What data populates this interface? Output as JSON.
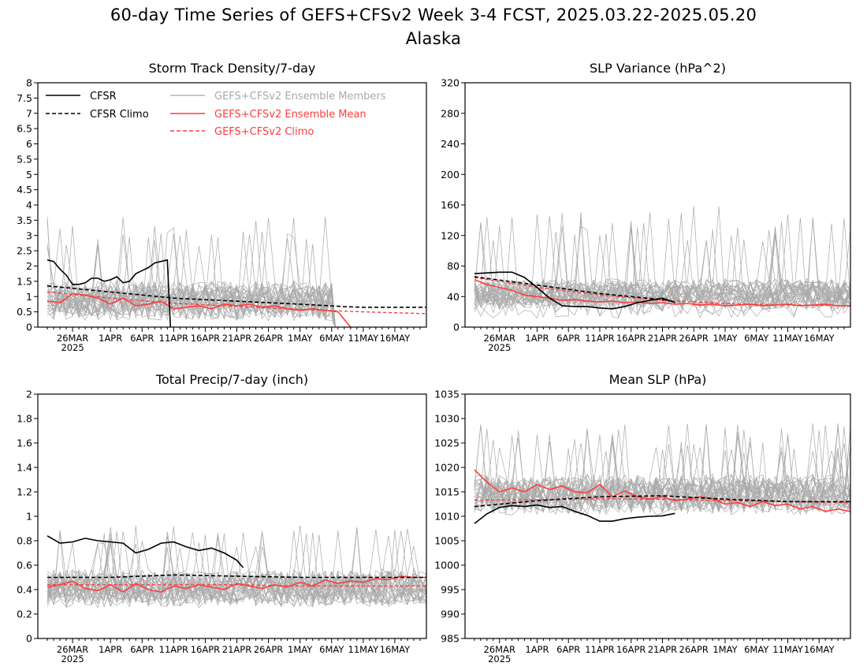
{
  "title_line1": "60-day Time Series of GEFS+CFSv2 Week 3-4 FCST, 2025.03.22-2025.05.20",
  "title_line2": "Alaska",
  "x_ticks": [
    {
      "day": 4,
      "label": "26MAR"
    },
    {
      "day": 10,
      "label": "1APR"
    },
    {
      "day": 15,
      "label": "6APR"
    },
    {
      "day": 20,
      "label": "11APR"
    },
    {
      "day": 25,
      "label": "16APR"
    },
    {
      "day": 30,
      "label": "21APR"
    },
    {
      "day": 35,
      "label": "26APR"
    },
    {
      "day": 40,
      "label": "1MAY"
    },
    {
      "day": 45,
      "label": "6MAY"
    },
    {
      "day": 50,
      "label": "11MAY"
    },
    {
      "day": 55,
      "label": "16MAY"
    }
  ],
  "x_year_label": "2025",
  "legend": {
    "cfsr": "CFSR",
    "cfsr_climo": "CFSR Climo",
    "members": "GEFS+CFSv2 Ensemble Members",
    "ens_mean": "GEFS+CFSv2 Ensemble Mean",
    "gefs_climo": "GEFS+CFSv2 Climo"
  },
  "colors": {
    "cfsr": "#000000",
    "members": "#a9a9a9",
    "ens_mean": "#ff3c3c",
    "gefs_climo": "#ff3c3c"
  },
  "chart_data": [
    {
      "type": "line",
      "title": "Storm Track Density/7-day",
      "ylim": [
        0,
        8
      ],
      "yticks": [
        0,
        0.5,
        1,
        1.5,
        2,
        2.5,
        3,
        3.5,
        4,
        4.5,
        5,
        5.5,
        6,
        6.5,
        7,
        7.5,
        8
      ],
      "members_summary": {
        "count": 30,
        "center": 0.9,
        "spread": 0.7,
        "max_peak": 3.7,
        "last_day": 45
      },
      "series": [
        {
          "key": "cfsr",
          "x": [
            0,
            1,
            2,
            3,
            4,
            5,
            6,
            7,
            8,
            9,
            10,
            11,
            12,
            13,
            14,
            15,
            16,
            17,
            18,
            19,
            19.5
          ],
          "values": [
            2.2,
            2.15,
            1.9,
            1.7,
            1.4,
            1.4,
            1.45,
            1.6,
            1.6,
            1.5,
            1.55,
            1.65,
            1.45,
            1.5,
            1.75,
            1.85,
            1.95,
            2.1,
            2.15,
            2.2,
            0
          ]
        },
        {
          "key": "cfsr_climo",
          "x": [
            0,
            10,
            20,
            30,
            40,
            47,
            50,
            60
          ],
          "values": [
            1.35,
            1.15,
            0.95,
            0.85,
            0.75,
            0.67,
            0.65,
            0.65
          ]
        },
        {
          "key": "ens_mean",
          "x": [
            0,
            2,
            4,
            6,
            8,
            10,
            12,
            14,
            16,
            18,
            20,
            22,
            24,
            26,
            28,
            30,
            32,
            34,
            36,
            38,
            40,
            42,
            44,
            46,
            48
          ],
          "values": [
            0.85,
            0.8,
            1.1,
            1.05,
            0.95,
            0.75,
            0.95,
            0.7,
            0.75,
            0.85,
            0.6,
            0.65,
            0.7,
            0.6,
            0.75,
            0.7,
            0.75,
            0.65,
            0.7,
            0.6,
            0.55,
            0.6,
            0.55,
            0.5,
            0
          ]
        },
        {
          "key": "gefs_climo",
          "x": [
            0,
            10,
            20,
            30,
            40,
            50,
            60
          ],
          "values": [
            1.15,
            0.95,
            0.78,
            0.68,
            0.58,
            0.5,
            0.44
          ]
        }
      ]
    },
    {
      "type": "line",
      "title": "SLP Variance (hPa^2)",
      "ylim": [
        0,
        320
      ],
      "yticks": [
        0,
        40,
        80,
        120,
        160,
        200,
        240,
        280,
        320
      ],
      "members_summary": {
        "count": 30,
        "center": 38,
        "spread": 22,
        "max_peak": 160,
        "last_day": 60
      },
      "series": [
        {
          "key": "cfsr",
          "x": [
            0,
            2,
            4,
            6,
            8,
            10,
            12,
            14,
            16,
            18,
            20,
            22,
            24,
            26,
            28,
            30,
            32
          ],
          "values": [
            70,
            71,
            72,
            72,
            65,
            52,
            38,
            28,
            27,
            27,
            25,
            24,
            27,
            32,
            35,
            38,
            32
          ]
        },
        {
          "key": "cfsr_climo",
          "x": [
            0,
            10,
            20,
            30,
            32
          ],
          "values": [
            66,
            55,
            44,
            36,
            33
          ]
        },
        {
          "key": "ens_mean",
          "x": [
            0,
            2,
            4,
            6,
            8,
            10,
            12,
            14,
            16,
            18,
            20,
            22,
            24,
            26,
            28,
            30,
            32,
            34,
            36,
            38,
            40,
            42,
            44,
            46,
            48,
            50,
            52,
            54,
            56,
            58,
            60
          ],
          "values": [
            62,
            56,
            52,
            48,
            42,
            40,
            38,
            35,
            36,
            34,
            33,
            34,
            32,
            33,
            31,
            32,
            30,
            31,
            29,
            30,
            28,
            29,
            30,
            28,
            29,
            30,
            28,
            29,
            30,
            28,
            28
          ]
        },
        {
          "key": "gefs_climo",
          "x": [
            0,
            10,
            20,
            30,
            40,
            50,
            60
          ],
          "values": [
            65,
            52,
            42,
            35,
            31,
            29,
            28
          ]
        }
      ]
    },
    {
      "type": "line",
      "title": "Total Precip/7-day (inch)",
      "ylim": [
        0,
        2
      ],
      "yticks": [
        0,
        0.2,
        0.4,
        0.6,
        0.8,
        1,
        1.2,
        1.4,
        1.6,
        1.8,
        2
      ],
      "members_summary": {
        "count": 30,
        "center": 0.45,
        "spread": 0.17,
        "max_peak": 0.93,
        "last_day": 60
      },
      "series": [
        {
          "key": "cfsr",
          "x": [
            0,
            2,
            4,
            6,
            8,
            10,
            12,
            14,
            16,
            18,
            20,
            22,
            24,
            26,
            28,
            30,
            31
          ],
          "values": [
            0.84,
            0.78,
            0.79,
            0.82,
            0.8,
            0.79,
            0.78,
            0.7,
            0.73,
            0.78,
            0.79,
            0.75,
            0.72,
            0.74,
            0.7,
            0.64,
            0.58
          ]
        },
        {
          "key": "cfsr_climo",
          "x": [
            0,
            10,
            20,
            30,
            40,
            50,
            60
          ],
          "values": [
            0.5,
            0.5,
            0.52,
            0.51,
            0.5,
            0.5,
            0.5
          ]
        },
        {
          "key": "ens_mean",
          "x": [
            0,
            2,
            4,
            6,
            8,
            10,
            12,
            14,
            16,
            18,
            20,
            22,
            24,
            26,
            28,
            30,
            32,
            34,
            36,
            38,
            40,
            42,
            44,
            46,
            48,
            50,
            52,
            54,
            56,
            58,
            60
          ],
          "values": [
            0.42,
            0.44,
            0.47,
            0.41,
            0.39,
            0.44,
            0.38,
            0.45,
            0.4,
            0.38,
            0.43,
            0.41,
            0.44,
            0.42,
            0.4,
            0.45,
            0.43,
            0.41,
            0.44,
            0.42,
            0.46,
            0.43,
            0.48,
            0.45,
            0.47,
            0.46,
            0.49,
            0.48,
            0.51,
            0.5,
            0.5
          ]
        },
        {
          "key": "gefs_climo",
          "x": [
            0,
            10,
            20,
            30,
            40,
            50,
            60
          ],
          "values": [
            0.44,
            0.44,
            0.44,
            0.44,
            0.43,
            0.43,
            0.43
          ]
        }
      ]
    },
    {
      "type": "line",
      "title": "Mean SLP (hPa)",
      "ylim": [
        985,
        1035
      ],
      "yticks": [
        985,
        990,
        995,
        1000,
        1005,
        1010,
        1015,
        1020,
        1025,
        1030,
        1035
      ],
      "members_summary": {
        "count": 30,
        "center": 1014,
        "spread": 4.5,
        "max_peak": 1029,
        "last_day": 60
      },
      "series": [
        {
          "key": "cfsr",
          "x": [
            0,
            2,
            4,
            6,
            8,
            10,
            12,
            14,
            16,
            18,
            20,
            22,
            24,
            26,
            28,
            30,
            32
          ],
          "values": [
            1008.5,
            1010.5,
            1011.8,
            1012.2,
            1012,
            1012.3,
            1011.8,
            1012,
            1011,
            1010.2,
            1009,
            1009,
            1009.5,
            1009.8,
            1010,
            1010.1,
            1010.6
          ]
        },
        {
          "key": "cfsr_climo",
          "x": [
            0,
            10,
            20,
            30,
            40,
            50,
            60
          ],
          "values": [
            1012,
            1013.2,
            1014,
            1014.2,
            1013.5,
            1013,
            1013
          ]
        },
        {
          "key": "ens_mean",
          "x": [
            0,
            2,
            4,
            6,
            8,
            10,
            12,
            14,
            16,
            18,
            20,
            22,
            24,
            26,
            28,
            30,
            32,
            34,
            36,
            38,
            40,
            42,
            44,
            46,
            48,
            50,
            52,
            54,
            56,
            58,
            60
          ],
          "values": [
            1019.5,
            1017,
            1015,
            1015.8,
            1015,
            1016.5,
            1015.5,
            1016.2,
            1015,
            1014.8,
            1016.5,
            1014,
            1015.2,
            1014,
            1013.5,
            1014,
            1013.2,
            1013.5,
            1014,
            1013.6,
            1012.5,
            1012.8,
            1012,
            1013,
            1012.2,
            1012.5,
            1011.5,
            1012,
            1011,
            1011.5,
            1011
          ]
        },
        {
          "key": "gefs_climo",
          "x": [
            0,
            10,
            20,
            30,
            40,
            50,
            60
          ],
          "values": [
            1013.3,
            1013.4,
            1013.6,
            1013.5,
            1013.2,
            1013,
            1012.8
          ]
        }
      ]
    }
  ]
}
